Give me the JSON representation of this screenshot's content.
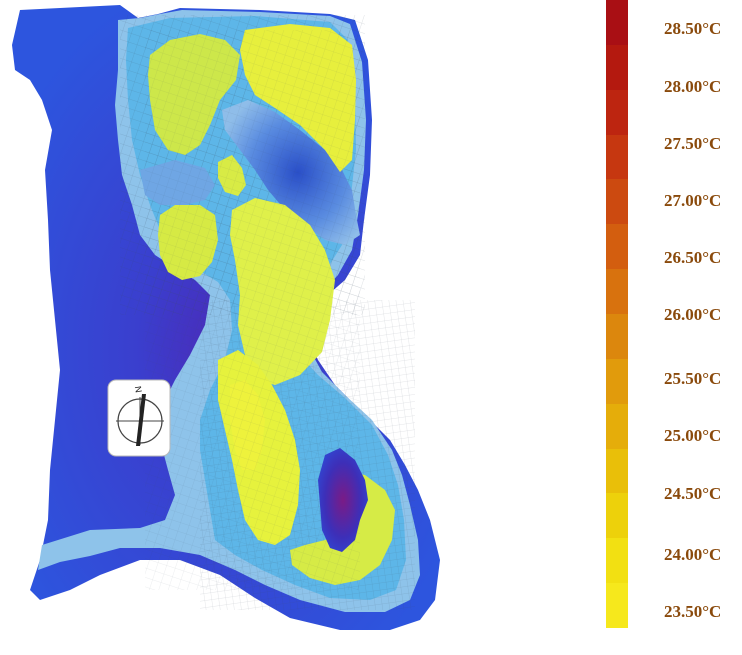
{
  "legend": {
    "labels": [
      "28.50°C",
      "28.00°C",
      "27.50°C",
      "27.00°C",
      "26.50°C",
      "26.00°C",
      "25.50°C",
      "25.00°C",
      "24.50°C",
      "24.00°C",
      "23.50°C"
    ],
    "bands": [
      "#a90f14",
      "#b4190f",
      "#bd2510",
      "#c63710",
      "#cc4a10",
      "#d35e0f",
      "#d8720e",
      "#dc870d",
      "#e19b0c",
      "#e5ad0a",
      "#e9bf09",
      "#edd10b",
      "#f2e012",
      "#f6e81c"
    ]
  },
  "map": {
    "compass": "north-arrow",
    "colors": {
      "deep_blue": "#2b45d6",
      "mid_blue": "#4a73e0",
      "cyan": "#58b6e9",
      "light_cyan": "#7fc8ef",
      "pale_blue": "#9cc8ea",
      "yellow_green": "#d8ec41",
      "yellow": "#eef23c",
      "purple": "#6a1e8f",
      "violet": "#3b2fb6"
    }
  }
}
